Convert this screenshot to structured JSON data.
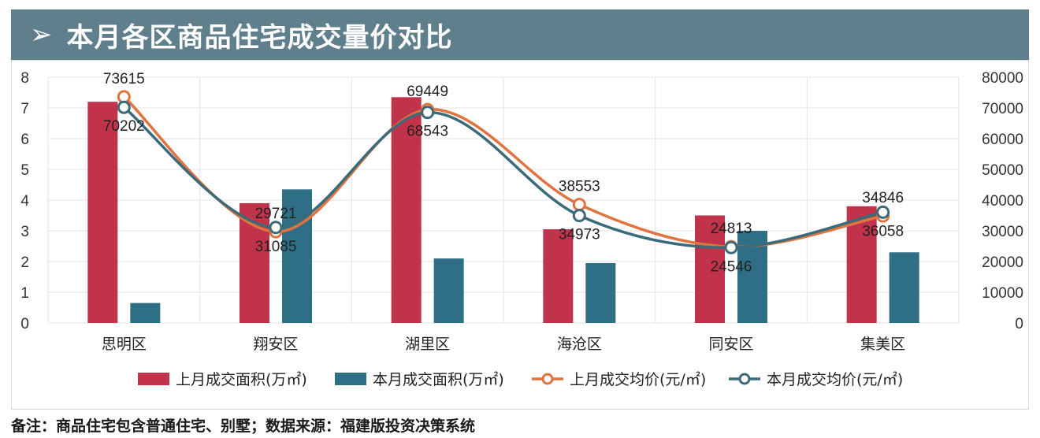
{
  "header": {
    "arrow": "➢",
    "title": "本月各区商品住宅成交量价对比"
  },
  "note": "备注：商品住宅包含普通住宅、别墅；数据来源：福建版投资决策系统",
  "chart_data": {
    "type": "bar",
    "categories": [
      "思明区",
      "翔安区",
      "湖里区",
      "海沧区",
      "同安区",
      "集美区"
    ],
    "y_left": {
      "ticks": [
        "0",
        "1",
        "2",
        "3",
        "4",
        "5",
        "6",
        "7",
        "8"
      ],
      "range": [
        0,
        8
      ]
    },
    "y_right": {
      "ticks": [
        "0",
        "10000",
        "20000",
        "30000",
        "40000",
        "50000",
        "60000",
        "70000",
        "80000"
      ],
      "range": [
        0,
        80000
      ]
    },
    "series": [
      {
        "name": "上月成交面积(万㎡)",
        "type": "bar",
        "axis": "left",
        "color": "#c0334a",
        "values": [
          7.2,
          3.9,
          7.35,
          3.05,
          3.5,
          3.8
        ]
      },
      {
        "name": "本月成交面积(万㎡)",
        "type": "bar",
        "axis": "left",
        "color": "#2e6f85",
        "values": [
          0.65,
          4.35,
          2.1,
          1.95,
          3.0,
          2.3
        ]
      },
      {
        "name": "上月成交均价(元/㎡)",
        "type": "line",
        "axis": "right",
        "color": "#e0733e",
        "values": [
          73615,
          29721,
          69449,
          38553,
          24813,
          34846
        ],
        "labels": [
          "73615",
          "29721",
          "69449",
          "38553",
          "24813",
          "34846"
        ]
      },
      {
        "name": "本月成交均价(元/㎡)",
        "type": "line",
        "axis": "right",
        "color": "#3b6b78",
        "values": [
          70202,
          31085,
          68543,
          34973,
          24546,
          36058
        ],
        "labels": [
          "70202",
          "31085",
          "68543",
          "34973",
          "24546",
          "36058"
        ]
      }
    ],
    "grid": true,
    "legend": "bottom"
  }
}
